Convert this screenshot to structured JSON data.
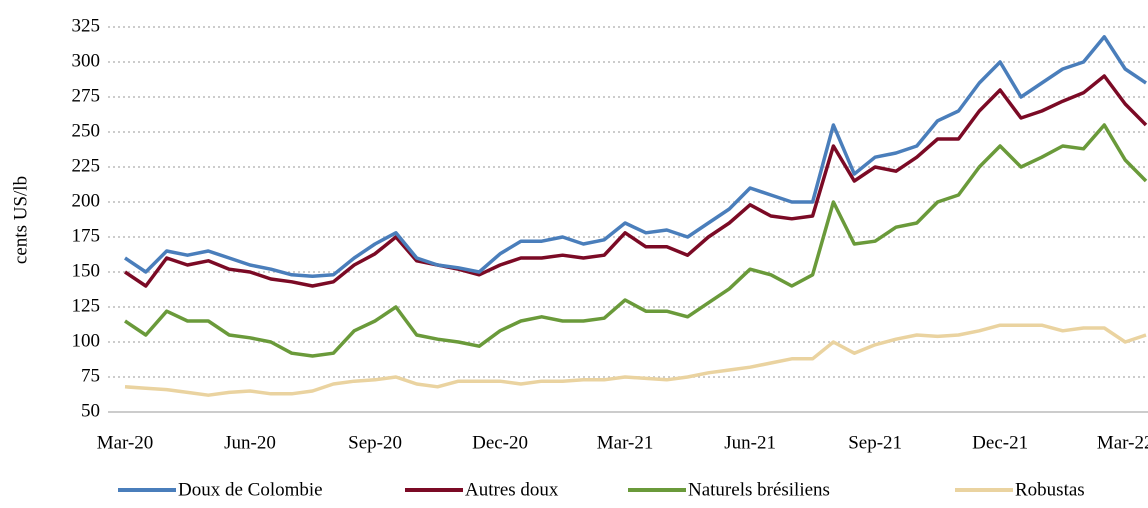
{
  "chart_data": {
    "type": "line",
    "y_label": "cents US/lb",
    "categories": [
      "Mar-20",
      null,
      null,
      null,
      null,
      null,
      "Jun-20",
      null,
      null,
      null,
      null,
      null,
      "Sep-20",
      null,
      null,
      null,
      null,
      null,
      "Dec-20",
      null,
      null,
      null,
      null,
      null,
      "Mar-21",
      null,
      null,
      null,
      null,
      null,
      "Jun-21",
      null,
      null,
      null,
      null,
      null,
      "Sep-21",
      null,
      null,
      null,
      null,
      null,
      "Dec-21",
      null,
      null,
      null,
      null,
      null,
      "Mar-22",
      null
    ],
    "series": [
      {
        "name": "Doux de Colombie",
        "color": "#4a7ebb",
        "values": [
          160,
          150,
          165,
          162,
          165,
          160,
          155,
          152,
          148,
          147,
          148,
          160,
          170,
          178,
          160,
          155,
          153,
          150,
          163,
          172,
          172,
          175,
          170,
          173,
          185,
          178,
          180,
          175,
          185,
          195,
          210,
          205,
          200,
          200,
          255,
          220,
          232,
          235,
          240,
          258,
          265,
          285,
          300,
          275,
          285,
          295,
          300,
          318,
          295,
          285
        ]
      },
      {
        "name": "Autres doux",
        "color": "#7b0a25",
        "values": [
          150,
          140,
          160,
          155,
          158,
          152,
          150,
          145,
          143,
          140,
          143,
          155,
          163,
          175,
          158,
          155,
          152,
          148,
          155,
          160,
          160,
          162,
          160,
          162,
          178,
          168,
          168,
          162,
          175,
          185,
          198,
          190,
          188,
          190,
          240,
          215,
          225,
          222,
          232,
          245,
          245,
          265,
          280,
          260,
          265,
          272,
          278,
          290,
          270,
          255
        ]
      },
      {
        "name": "Naturels brésiliens",
        "color": "#6a9a3a",
        "values": [
          115,
          105,
          122,
          115,
          115,
          105,
          103,
          100,
          92,
          90,
          92,
          108,
          115,
          125,
          105,
          102,
          100,
          97,
          108,
          115,
          118,
          115,
          115,
          117,
          130,
          122,
          122,
          118,
          128,
          138,
          152,
          148,
          140,
          148,
          200,
          170,
          172,
          182,
          185,
          200,
          205,
          225,
          240,
          225,
          232,
          240,
          238,
          255,
          230,
          215
        ]
      },
      {
        "name": "Robustas",
        "color": "#ead3a0",
        "values": [
          68,
          67,
          66,
          64,
          62,
          64,
          65,
          63,
          63,
          65,
          70,
          72,
          73,
          75,
          70,
          68,
          72,
          72,
          72,
          70,
          72,
          72,
          73,
          73,
          75,
          74,
          73,
          75,
          78,
          80,
          82,
          85,
          88,
          88,
          100,
          92,
          98,
          102,
          105,
          104,
          105,
          108,
          112,
          112,
          112,
          108,
          110,
          110,
          100,
          105
        ]
      }
    ],
    "ylim": [
      50,
      325
    ],
    "yticks": [
      50,
      75,
      100,
      125,
      150,
      175,
      200,
      225,
      250,
      275,
      300,
      325
    ],
    "grid": true,
    "legend": "bottom"
  }
}
